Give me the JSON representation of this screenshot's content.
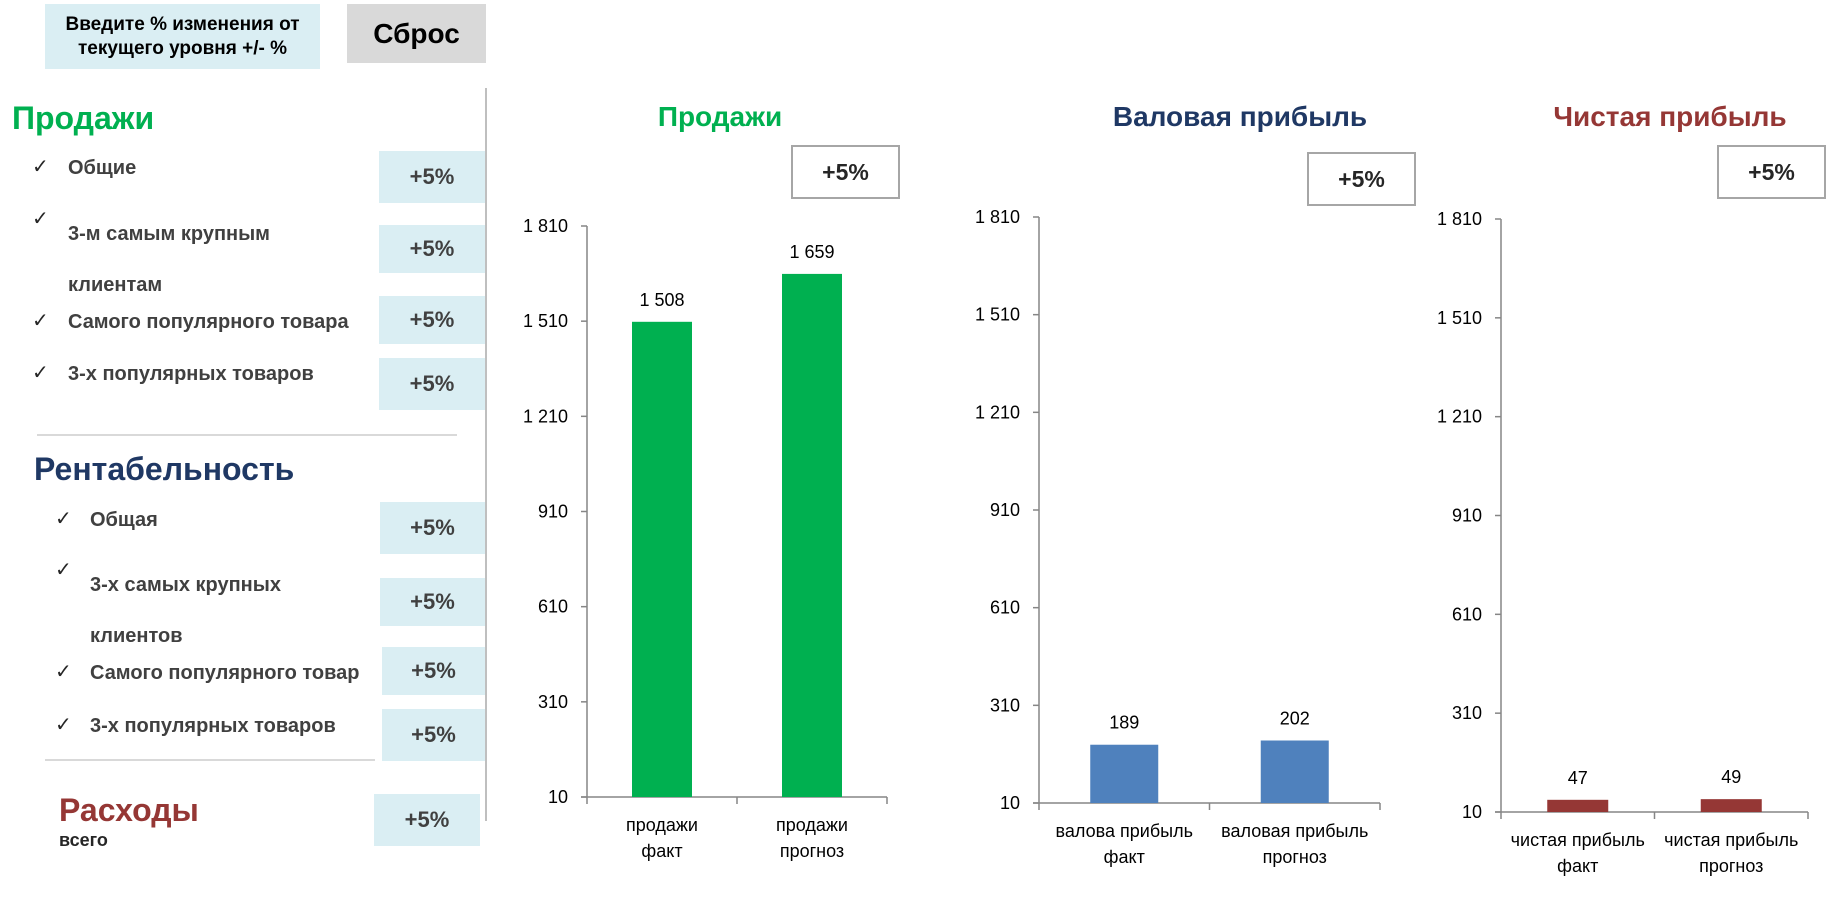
{
  "header": {
    "instruction": "Введите % изменения от текущего уровня +/- %",
    "reset_label": "Сброс"
  },
  "sales_section": {
    "title": "Продажи",
    "items": [
      {
        "label": "Общие",
        "pct": "+5%"
      },
      {
        "label": "3-м самым крупным клиентам",
        "pct": "+5%"
      },
      {
        "label": "Самого популярного товара",
        "pct": "+5%"
      },
      {
        "label": "3-х популярных товаров",
        "pct": "+5%"
      }
    ]
  },
  "profit_section": {
    "title": "Рентабельность",
    "items": [
      {
        "label": "Общая",
        "pct": "+5%"
      },
      {
        "label": "3-х самых крупных клиентов",
        "pct": "+5%"
      },
      {
        "label": "Самого популярного товар",
        "pct": "+5%"
      },
      {
        "label": "3-х популярных товаров",
        "pct": "+5%"
      }
    ]
  },
  "expenses_section": {
    "title": "Расходы",
    "subtitle": "всего",
    "pct": "+5%"
  },
  "colors": {
    "sales": "#00b050",
    "gross": "#1f3864",
    "net": "#953735",
    "gross_bar": "#4f81bd",
    "net_bar": "#953735"
  },
  "chart_data": [
    {
      "type": "bar",
      "title": "Продажи",
      "pct": "+5%",
      "categories": [
        "продажи факт",
        "продажи прогноз"
      ],
      "values": [
        1508,
        1659
      ],
      "value_labels": [
        "1 508",
        "1 659"
      ],
      "yticks": [
        10,
        310,
        610,
        910,
        1210,
        1510,
        1810
      ],
      "ytick_labels": [
        "10",
        "310",
        "610",
        "910",
        "1 210",
        "1 510",
        "1 810"
      ],
      "ylim": [
        10,
        1810
      ],
      "bar_color": "#00b050",
      "title_color": "#00b050"
    },
    {
      "type": "bar",
      "title": "Валовая прибыль",
      "pct": "+5%",
      "categories": [
        "валова прибыль факт",
        "валовая прибыль прогноз"
      ],
      "values": [
        189,
        202
      ],
      "value_labels": [
        "189",
        "202"
      ],
      "yticks": [
        10,
        310,
        610,
        910,
        1210,
        1510,
        1810
      ],
      "ytick_labels": [
        "10",
        "310",
        "610",
        "910",
        "1 210",
        "1 510",
        "1 810"
      ],
      "ylim": [
        10,
        1810
      ],
      "bar_color": "#4f81bd",
      "title_color": "#1f3864"
    },
    {
      "type": "bar",
      "title": "Чистая прибыль",
      "pct": "+5%",
      "categories": [
        "чистая прибыль факт",
        "чистая прибыль прогноз"
      ],
      "values": [
        47,
        49
      ],
      "value_labels": [
        "47",
        "49"
      ],
      "yticks": [
        10,
        310,
        610,
        910,
        1210,
        1510,
        1810
      ],
      "ytick_labels": [
        "10",
        "310",
        "610",
        "910",
        "1 210",
        "1 510",
        "1 810"
      ],
      "ylim": [
        10,
        1810
      ],
      "bar_color": "#953735",
      "title_color": "#953735"
    }
  ]
}
